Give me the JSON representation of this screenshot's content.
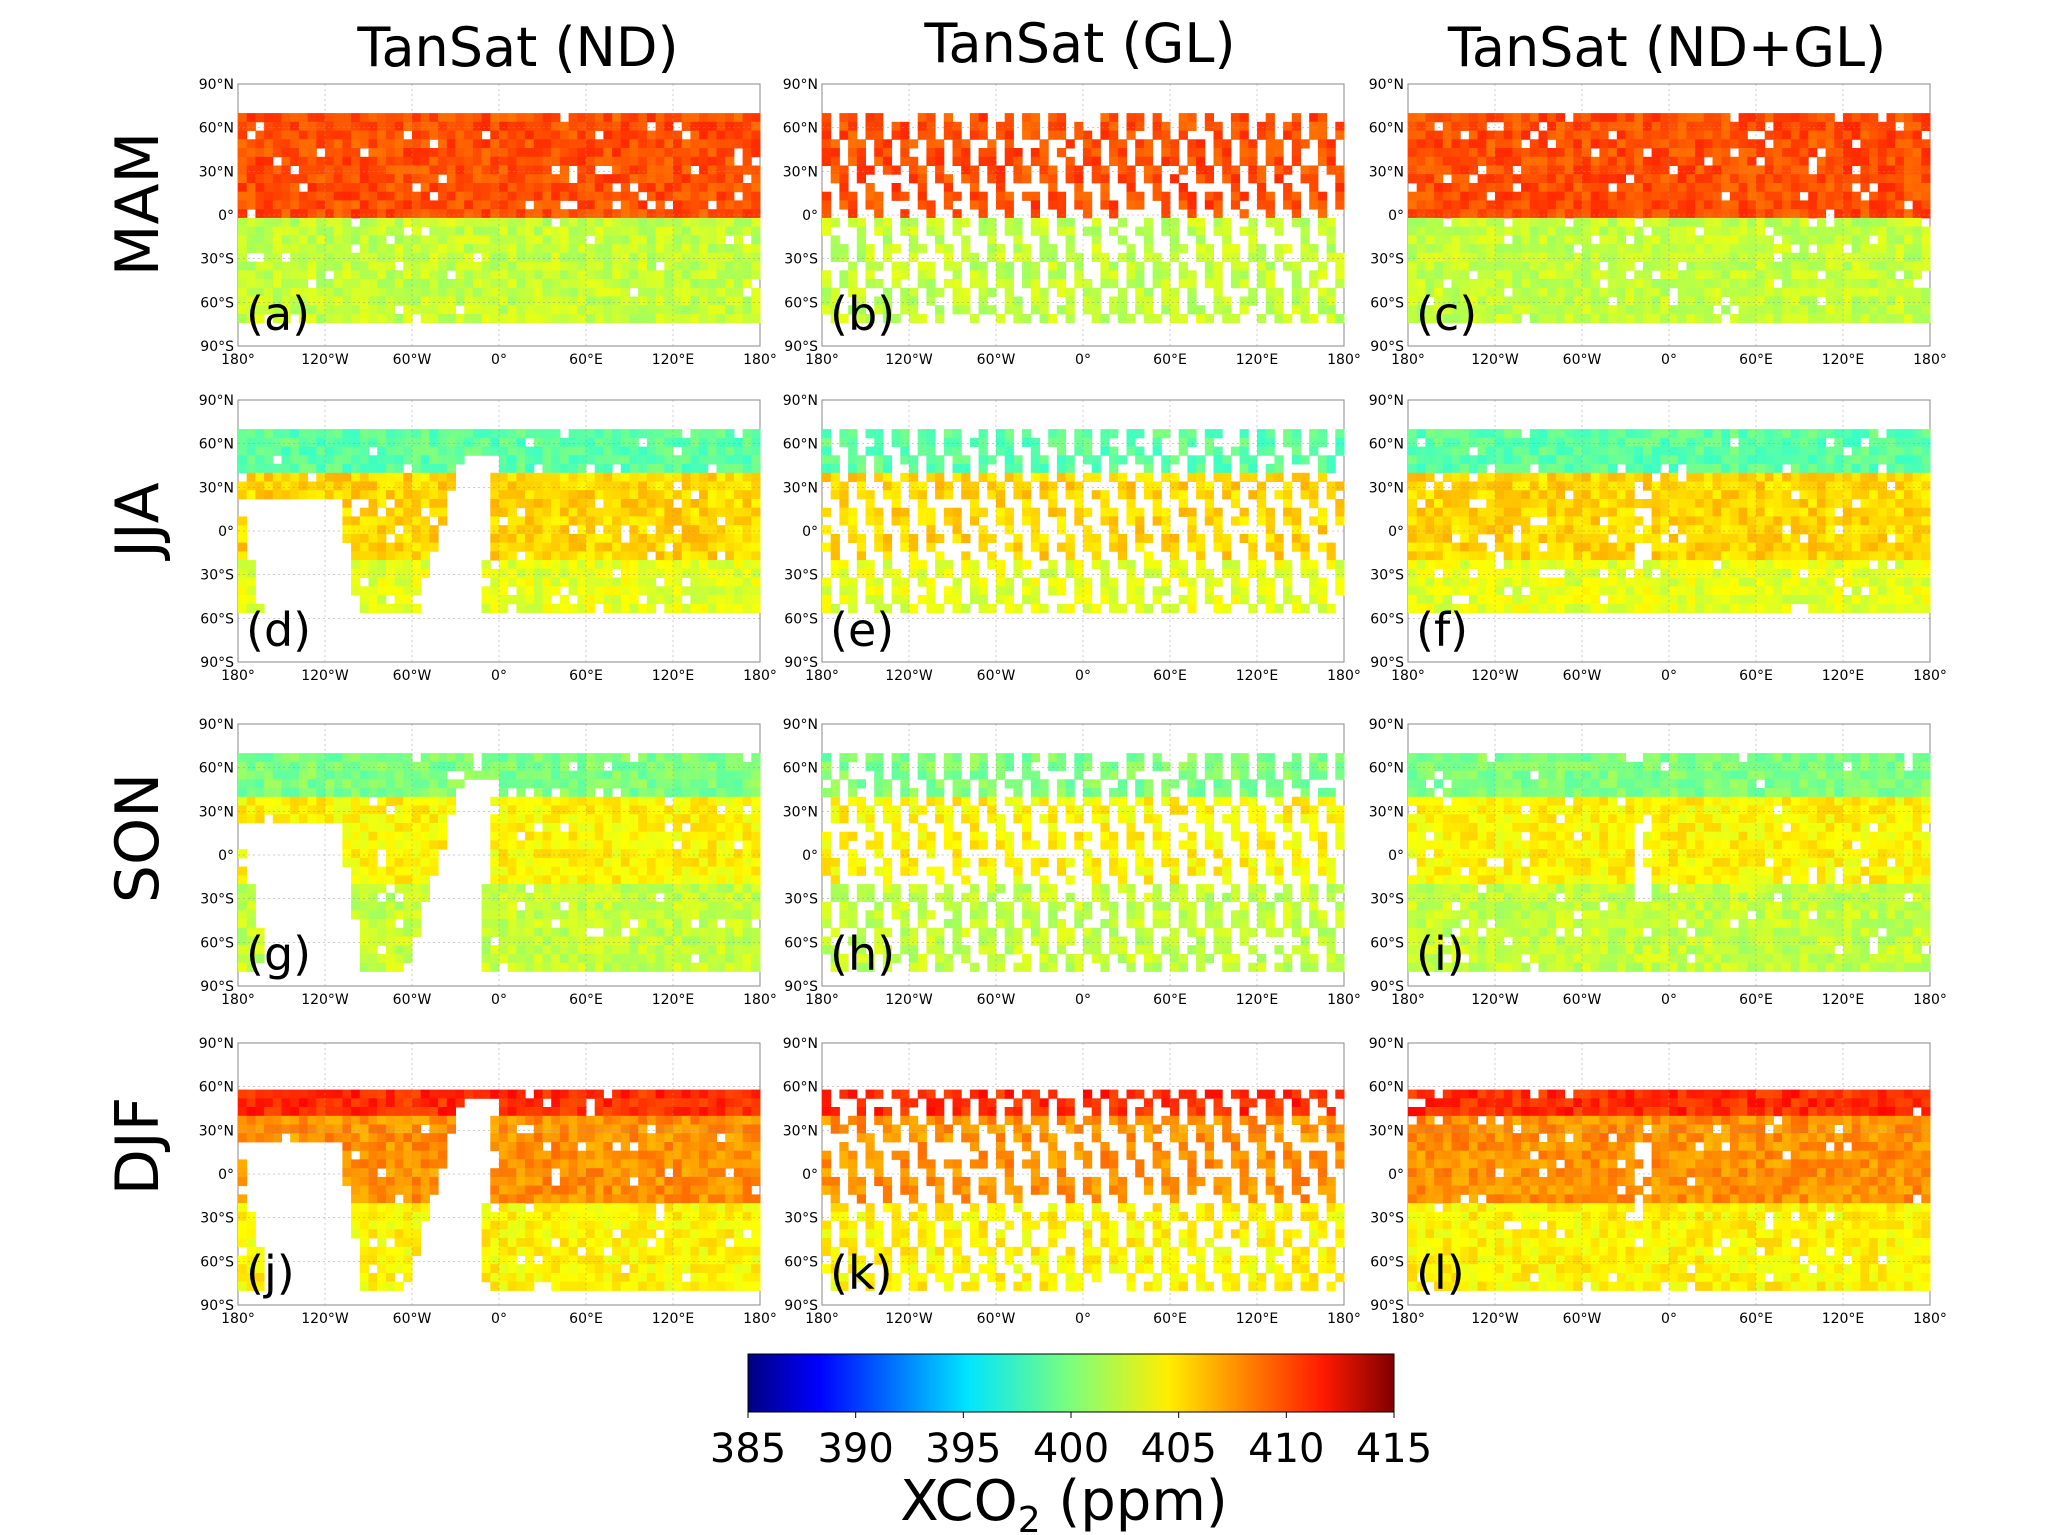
{
  "chart_data": {
    "type": "heatmap",
    "description_units": "XCO2 (ppm)",
    "columns": [
      "TanSat (ND)",
      "TanSat (GL)",
      "TanSat (ND+GL)"
    ],
    "rows": [
      "MAM",
      "JJA",
      "SON",
      "DJF"
    ],
    "panel_labels": [
      "(a)",
      "(b)",
      "(c)",
      "(d)",
      "(e)",
      "(f)",
      "(g)",
      "(h)",
      "(i)",
      "(j)",
      "(k)",
      "(l)"
    ],
    "x_ticks": [
      "180°",
      "120°W",
      "60°W",
      "0°",
      "60°E",
      "120°E",
      "180°"
    ],
    "y_ticks": [
      "90°N",
      "60°N",
      "30°N",
      "0°",
      "30°S",
      "60°S",
      "90°S"
    ],
    "xlim": [
      -180,
      180
    ],
    "ylim": [
      -90,
      90
    ],
    "colorbar": {
      "label_main": "XCO",
      "label_sub": "2",
      "label_unit": " (ppm)",
      "ticks": [
        "385",
        "390",
        "395",
        "400",
        "405",
        "410",
        "415"
      ],
      "range": [
        385,
        415
      ],
      "colormap": "jet"
    },
    "seasonal_typical_xco2": {
      "MAM": {
        "north": 409,
        "south": 402
      },
      "JJA": {
        "north": 399,
        "tropics": 405,
        "south": 403
      },
      "SON": {
        "north": 400,
        "tropics": 404,
        "south": 402
      },
      "DJF": {
        "north": 410,
        "tropics": 407,
        "south": 404
      }
    }
  }
}
